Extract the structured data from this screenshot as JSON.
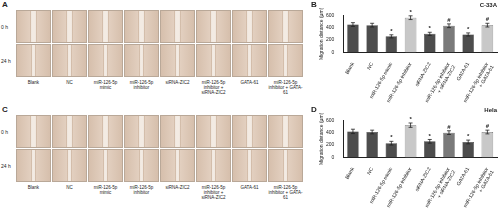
{
  "panels": [
    {
      "label": "A",
      "rows": [
        "0 h",
        "24 h"
      ],
      "columns": [
        "Blank",
        "NC",
        "miR-126-5p mimic",
        "miR-126-5p inhibitor",
        "siRNA-ZIC2",
        "miR-126-5p inhibitor + siRNA-ZIC2",
        "GATA-61",
        "miR-126-5p inhibitor + GATA-61"
      ]
    },
    {
      "label": "C",
      "rows": [
        "0 h",
        "24 h"
      ],
      "columns": [
        "Blank",
        "NC",
        "miR-126-5p mimic",
        "miR-126-5p inhibitor",
        "siRNA-ZIC2",
        "miR-126-5p inhibitor + siRNA-ZIC2",
        "GATA-61",
        "miR-126-5p inhibitor + GATA-61"
      ]
    }
  ],
  "chart_data": [
    {
      "panel": "B",
      "type": "bar",
      "title": "C-33A",
      "y_label": "Migration distance (μm)",
      "categories": [
        "Blank",
        "NC",
        "miR-126-5p mimic",
        "miR-126-5p inhibitor",
        "siRNA-ZIC2",
        "miR-126-5p inhibitor + siRNA-ZIC2",
        "GATA-61",
        "miR-126-5p inhibitor + GATA-61"
      ],
      "values": [
        450,
        440,
        260,
        560,
        300,
        430,
        290,
        440
      ],
      "errors": [
        30,
        30,
        25,
        30,
        25,
        30,
        25,
        30
      ],
      "significance": [
        null,
        null,
        "*",
        "*",
        "*",
        "#",
        "*",
        "#"
      ],
      "colors": [
        "#4d4d4d",
        "#4d4d4d",
        "#4d4d4d",
        "#c8c8c8",
        "#4d4d4d",
        "#7a7a7a",
        "#4d4d4d",
        "#c8c8c8"
      ],
      "ylim": [
        0,
        600
      ],
      "yticks": [
        0,
        200,
        400,
        600
      ],
      "grid": false
    },
    {
      "panel": "D",
      "type": "bar",
      "title": "Hela",
      "y_label": "Migration distance (μm)",
      "categories": [
        "Blank",
        "NC",
        "miR-126-5p mimic",
        "miR-126-5p inhibitor",
        "siRNA-ZIC2",
        "miR-126-5p inhibitor + siRNA-ZIC2",
        "GATA-61",
        "miR-126-5p inhibitor + GATA-61"
      ],
      "values": [
        420,
        410,
        230,
        520,
        260,
        400,
        250,
        410
      ],
      "errors": [
        35,
        30,
        30,
        35,
        30,
        30,
        30,
        30
      ],
      "significance": [
        null,
        null,
        "*",
        "*",
        "*",
        "#",
        "*",
        "#"
      ],
      "colors": [
        "#4d4d4d",
        "#4d4d4d",
        "#4d4d4d",
        "#c8c8c8",
        "#4d4d4d",
        "#7a7a7a",
        "#4d4d4d",
        "#c8c8c8"
      ],
      "ylim": [
        0,
        600
      ],
      "yticks": [
        0,
        200,
        400,
        600
      ],
      "grid": false
    }
  ]
}
